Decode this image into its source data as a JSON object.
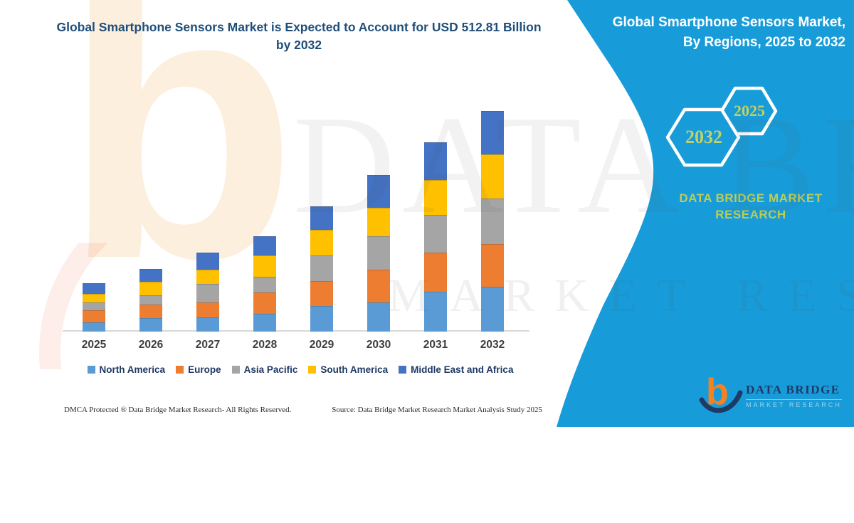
{
  "title": "Global Smartphone Sensors Market is Expected to Account for USD 512.81 Billion by 2032",
  "chart_data": {
    "type": "bar",
    "stacked": true,
    "title": "Global Smartphone Sensors Market is Expected to Account for USD 512.81 Billion by 2032",
    "unit": "USD Billion",
    "categories": [
      "2025",
      "2026",
      "2027",
      "2028",
      "2029",
      "2030",
      "2031",
      "2032"
    ],
    "series": [
      {
        "name": "North America",
        "color": "#5B9BD5",
        "values": [
          21,
          31,
          33,
          42,
          59,
          67,
          93,
          104
        ]
      },
      {
        "name": "Europe",
        "color": "#ED7D31",
        "values": [
          28,
          31,
          34,
          49,
          58,
          77,
          90,
          100
        ]
      },
      {
        "name": "Asia Pacific",
        "color": "#A5A5A5",
        "values": [
          18,
          22,
          43,
          36,
          59,
          77,
          88,
          105
        ]
      },
      {
        "name": "South America",
        "color": "#FFC000",
        "values": [
          20,
          31,
          34,
          49,
          60,
          66,
          81,
          102
        ]
      },
      {
        "name": "Middle East and Africa",
        "color": "#4472C4",
        "values": [
          25,
          31,
          39,
          46,
          55,
          77,
          88,
          101.81
        ]
      }
    ],
    "totals": [
      112,
      146,
      183,
      222,
      291,
      364,
      440,
      512.81
    ],
    "ylim": [
      0,
      520
    ],
    "grid": false,
    "legend_position": "bottom",
    "xlabel": "",
    "ylabel": ""
  },
  "side_panel": {
    "background_color": "#189cd9",
    "title_line1": "Global Smartphone Sensors Market,",
    "title_line2": "By Regions, 2025 to 2032",
    "hexagon_large": "2032",
    "hexagon_small": "2025",
    "brand_line1": "DATA BRIDGE MARKET",
    "brand_line2": "RESEARCH",
    "accent_text_color": "#c2d166"
  },
  "logo": {
    "glyph": "b",
    "name": "DATA BRIDGE",
    "subtitle": "MARKET RESEARCH"
  },
  "watermark": {
    "glyph": "b",
    "line1": "DATA BRIDGE",
    "line2": "MARKET RESEARCH"
  },
  "footer": {
    "left": "DMCA Protected ® Data Bridge Market Research-  All Rights Reserved.",
    "right": "Source: Data Bridge Market Research  Market Analysis Study 2025"
  }
}
